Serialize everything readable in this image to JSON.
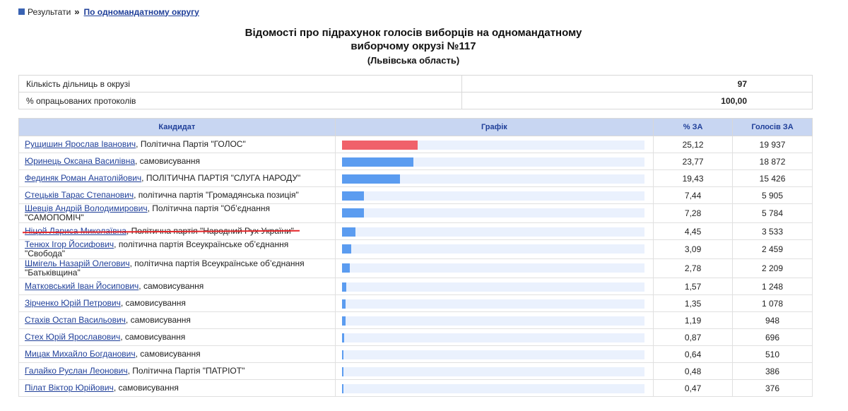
{
  "breadcrumb": {
    "root": "Результати",
    "separator": "»",
    "current": "По одномандатному округу"
  },
  "heading": {
    "title_line1": "Відомості про підрахунок голосів виборців на одномандатному",
    "title_line2": "виборчому окрузі №117",
    "region": "(Львівська область)"
  },
  "summary": [
    {
      "label": "Кількість дільниць в окрузі",
      "value": "97"
    },
    {
      "label": "% опрацьованих протоколів",
      "value": "100,00"
    }
  ],
  "table": {
    "headers": {
      "candidate": "Кандидат",
      "graph": "Графік",
      "percent": "% ЗА",
      "votes": "Голосів ЗА"
    },
    "rows": [
      {
        "name": "Рущишин Ярослав Іванович",
        "party": ", Політична Партія \"ГОЛОС\"",
        "percent": "25,12",
        "votes": "19 937",
        "share": 25.12
      },
      {
        "name": "Юринець Оксана Василівна",
        "party": ", самовисування",
        "percent": "23,77",
        "votes": "18 872",
        "share": 23.77
      },
      {
        "name": "Фединяк Роман Анатолійович",
        "party": ", ПОЛІТИЧНА ПАРТІЯ \"СЛУГА НАРОДУ\"",
        "percent": "19,43",
        "votes": "15 426",
        "share": 19.43
      },
      {
        "name": "Стецьків Тарас Степанович",
        "party": ", політична партія \"Громадянська позиція\"",
        "percent": "7,44",
        "votes": "5 905",
        "share": 7.44
      },
      {
        "name": "Шевців Андрій Володимирович",
        "party": ", Політична партія \"Об’єднання \"САМОПОМІЧ\"",
        "percent": "7,28",
        "votes": "5 784",
        "share": 7.28
      },
      {
        "name": "Ніцой Лариса Миколаївна",
        "party": ", Політична партія \"Народний Рух України\"",
        "percent": "4,45",
        "votes": "3 533",
        "share": 4.45
      },
      {
        "name": "Тенюх Ігор Йосифович",
        "party": ", політична партія Всеукраїнське об’єднання \"Свобода\"",
        "percent": "3,09",
        "votes": "2 459",
        "share": 3.09
      },
      {
        "name": "Шмігель Назарій Олегович",
        "party": ", політична партія Всеукраїнське об’єднання \"Батьківщина\"",
        "percent": "2,78",
        "votes": "2 209",
        "share": 2.78
      },
      {
        "name": "Матковський Іван Йосипович",
        "party": ", самовисування",
        "percent": "1,57",
        "votes": "1 248",
        "share": 1.57
      },
      {
        "name": "Зірченко Юрій Петрович",
        "party": ", самовисування",
        "percent": "1,35",
        "votes": "1 078",
        "share": 1.35
      },
      {
        "name": "Стахів Остап Васильович",
        "party": ", самовисування",
        "percent": "1,19",
        "votes": "948",
        "share": 1.19
      },
      {
        "name": "Стех Юрій Ярославович",
        "party": ", самовисування",
        "percent": "0,87",
        "votes": "696",
        "share": 0.87
      },
      {
        "name": "Мицак Михайло Богданович",
        "party": ", самовисування",
        "percent": "0,64",
        "votes": "510",
        "share": 0.64
      },
      {
        "name": "Галайко Руслан Леонович",
        "party": ", Політична Партія \"ПАТРІОТ\"",
        "percent": "0,48",
        "votes": "386",
        "share": 0.48
      },
      {
        "name": "Пілат Віктор Юрійович",
        "party": ", самовисування",
        "percent": "0,47",
        "votes": "376",
        "share": 0.47
      }
    ]
  },
  "colors": {
    "leader_bar": "#f0616a",
    "bar": "#5b9cf0",
    "bar_track": "#eaf1fd",
    "header_bg": "#c8d6f2",
    "link": "#1f3f99",
    "highlight_underline": "#e5272a"
  }
}
